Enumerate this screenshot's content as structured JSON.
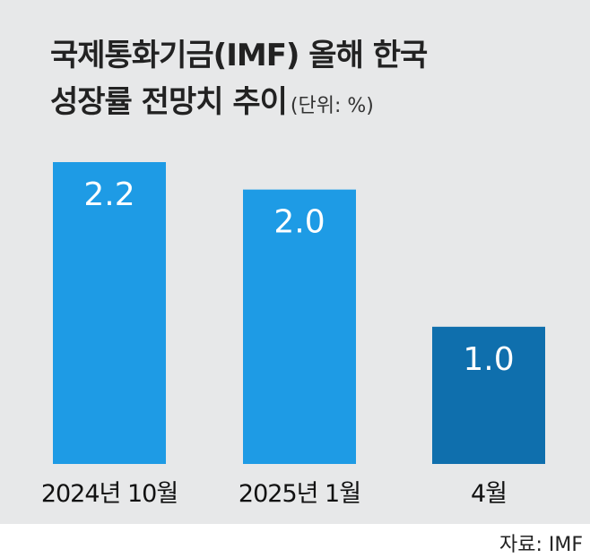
{
  "title_line1": "국제통화기금(IMF) 올해 한국",
  "title_line2": "성장률 전망치 추이",
  "unit": "(단위: %)",
  "source": "자료: IMF",
  "colors": {
    "background": "#e7e8e9",
    "bar_primary": "#1e9be5",
    "bar_highlight": "#0f6fad"
  },
  "chart_data": {
    "type": "bar",
    "title": "국제통화기금(IMF) 올해 한국 성장률 전망치 추이",
    "unit": "(단위: %)",
    "categories": [
      "2024년 10월",
      "2025년 1월",
      "4월"
    ],
    "values": [
      2.2,
      2.0,
      1.0
    ],
    "value_labels": [
      "2.2",
      "2.0",
      "1.0"
    ],
    "ylim": [
      0,
      2.2
    ],
    "grid": false,
    "legend": "none"
  }
}
